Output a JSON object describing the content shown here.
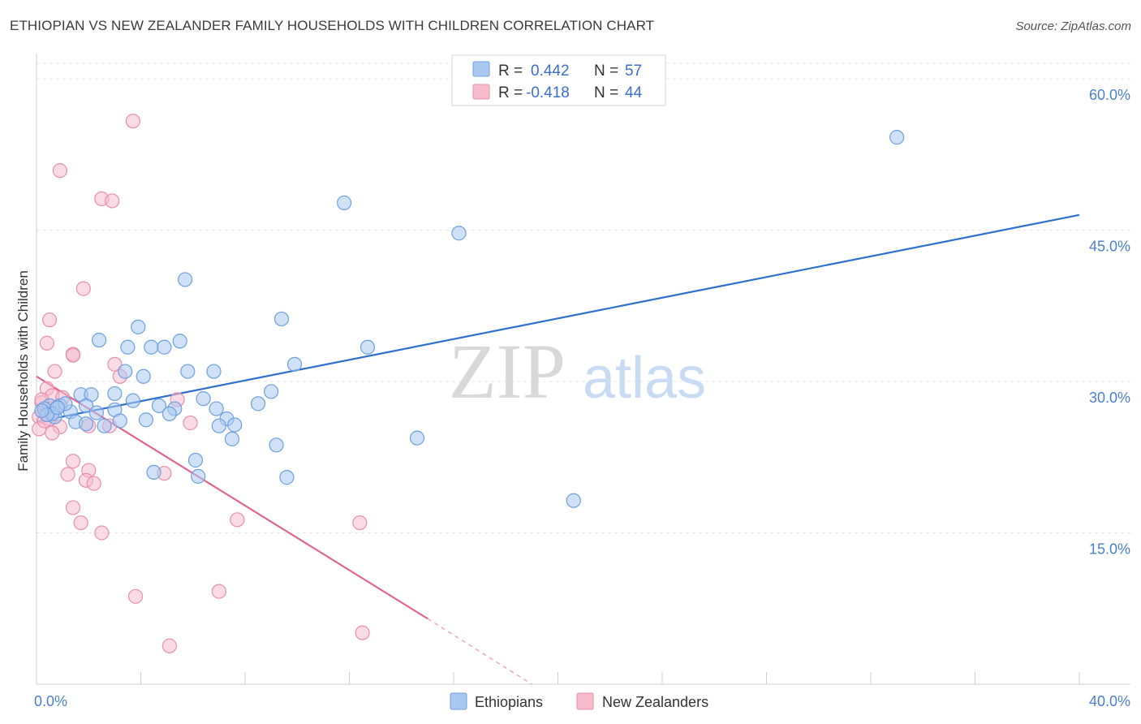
{
  "header": {
    "title": "ETHIOPIAN VS NEW ZEALANDER FAMILY HOUSEHOLDS WITH CHILDREN CORRELATION CHART",
    "source": "Source: ZipAtlas.com"
  },
  "watermark": {
    "zip": "ZIP",
    "atlas": "atlas"
  },
  "legend": {
    "rows": [
      {
        "r_label": "R =",
        "r_value": "0.442",
        "n_label": "N =",
        "n_value": "57"
      },
      {
        "r_label": "R =",
        "r_value": "-0.418",
        "n_label": "N =",
        "n_value": "44"
      }
    ]
  },
  "colors": {
    "ethiopians_fill": "#a9c8f0",
    "ethiopians_stroke": "#6d9fe0",
    "ethiopians_line": "#2f6fcf",
    "nz_fill": "#f6bccd",
    "nz_stroke": "#e88fab",
    "nz_line": "#e06690",
    "grid": "#e6e6e6",
    "tick_text": "#4a7fd0"
  },
  "chart_data": {
    "type": "scatter",
    "title": "ETHIOPIAN VS NEW ZEALANDER FAMILY HOUSEHOLDS WITH CHILDREN CORRELATION CHART",
    "xlabel": "",
    "ylabel": "Family Households with Children",
    "xlim": [
      0,
      40
    ],
    "ylim": [
      0,
      60
    ],
    "x_tick_labels": [
      "0.0%",
      "40.0%"
    ],
    "y_ticks": [
      15,
      30,
      45,
      60
    ],
    "y_tick_labels": [
      "15.0%",
      "30.0%",
      "45.0%",
      "60.0%"
    ],
    "legend_position": "bottom-center",
    "series": [
      {
        "name": "Ethiopians",
        "r": 0.442,
        "n": 57,
        "trend": {
          "x0": 0.0,
          "y0": 26.0,
          "x1": 40.0,
          "y1": 46.5
        },
        "points": [
          [
            33.0,
            54.2
          ],
          [
            11.8,
            47.7
          ],
          [
            16.2,
            44.7
          ],
          [
            5.7,
            40.1
          ],
          [
            9.4,
            36.2
          ],
          [
            3.9,
            35.4
          ],
          [
            2.4,
            34.1
          ],
          [
            5.5,
            34.0
          ],
          [
            3.5,
            33.4
          ],
          [
            4.4,
            33.4
          ],
          [
            4.9,
            33.4
          ],
          [
            12.7,
            33.4
          ],
          [
            9.9,
            31.7
          ],
          [
            3.4,
            31.0
          ],
          [
            5.8,
            31.0
          ],
          [
            6.8,
            31.0
          ],
          [
            4.1,
            30.5
          ],
          [
            3.0,
            28.8
          ],
          [
            1.7,
            28.7
          ],
          [
            2.1,
            28.7
          ],
          [
            9.0,
            29.0
          ],
          [
            6.4,
            28.3
          ],
          [
            3.7,
            28.1
          ],
          [
            1.9,
            27.6
          ],
          [
            4.7,
            27.6
          ],
          [
            5.3,
            27.3
          ],
          [
            6.9,
            27.3
          ],
          [
            8.5,
            27.8
          ],
          [
            0.5,
            27.6
          ],
          [
            0.9,
            27.6
          ],
          [
            1.3,
            27.0
          ],
          [
            2.3,
            26.9
          ],
          [
            3.0,
            27.2
          ],
          [
            5.1,
            26.8
          ],
          [
            7.3,
            26.3
          ],
          [
            4.2,
            26.2
          ],
          [
            3.2,
            26.1
          ],
          [
            1.5,
            26.0
          ],
          [
            1.9,
            25.8
          ],
          [
            0.7,
            26.5
          ],
          [
            7.6,
            25.7
          ],
          [
            7.0,
            25.6
          ],
          [
            2.6,
            25.6
          ],
          [
            7.5,
            24.3
          ],
          [
            9.2,
            23.7
          ],
          [
            14.6,
            24.4
          ],
          [
            6.1,
            22.2
          ],
          [
            4.5,
            21.0
          ],
          [
            6.2,
            20.6
          ],
          [
            9.6,
            20.5
          ],
          [
            20.6,
            18.2
          ],
          [
            0.3,
            27.3
          ],
          [
            0.6,
            26.8
          ],
          [
            1.1,
            27.8
          ],
          [
            0.4,
            26.7
          ],
          [
            0.8,
            27.4
          ],
          [
            0.2,
            27.1
          ]
        ]
      },
      {
        "name": "New Zealanders",
        "r": -0.418,
        "n": 44,
        "trend": {
          "x0": 0.0,
          "y0": 30.5,
          "x1": 15.0,
          "y1": 6.5,
          "dashed_to_x": 19.0,
          "dashed_to_y": 0.0
        },
        "points": [
          [
            3.7,
            55.8
          ],
          [
            0.9,
            50.9
          ],
          [
            2.5,
            48.1
          ],
          [
            2.9,
            47.9
          ],
          [
            1.8,
            39.2
          ],
          [
            0.5,
            36.1
          ],
          [
            0.4,
            33.8
          ],
          [
            1.4,
            32.7
          ],
          [
            1.4,
            32.6
          ],
          [
            3.0,
            31.7
          ],
          [
            0.7,
            31.0
          ],
          [
            3.2,
            30.5
          ],
          [
            0.4,
            29.3
          ],
          [
            0.6,
            28.6
          ],
          [
            1.0,
            28.4
          ],
          [
            5.4,
            28.2
          ],
          [
            0.2,
            27.9
          ],
          [
            0.8,
            27.5
          ],
          [
            0.3,
            27.0
          ],
          [
            0.1,
            26.5
          ],
          [
            0.5,
            26.3
          ],
          [
            5.9,
            25.9
          ],
          [
            2.8,
            25.6
          ],
          [
            2.0,
            25.6
          ],
          [
            0.9,
            25.5
          ],
          [
            0.1,
            25.3
          ],
          [
            0.6,
            24.9
          ],
          [
            1.4,
            22.1
          ],
          [
            2.0,
            21.2
          ],
          [
            1.2,
            20.8
          ],
          [
            4.9,
            20.9
          ],
          [
            1.9,
            20.2
          ],
          [
            2.2,
            19.9
          ],
          [
            1.4,
            17.5
          ],
          [
            7.7,
            16.3
          ],
          [
            12.4,
            16.0
          ],
          [
            1.7,
            16.0
          ],
          [
            2.5,
            15.0
          ],
          [
            7.0,
            9.2
          ],
          [
            3.8,
            8.7
          ],
          [
            12.5,
            5.1
          ],
          [
            5.1,
            3.8
          ],
          [
            0.2,
            28.2
          ],
          [
            0.3,
            26.1
          ]
        ]
      }
    ]
  }
}
